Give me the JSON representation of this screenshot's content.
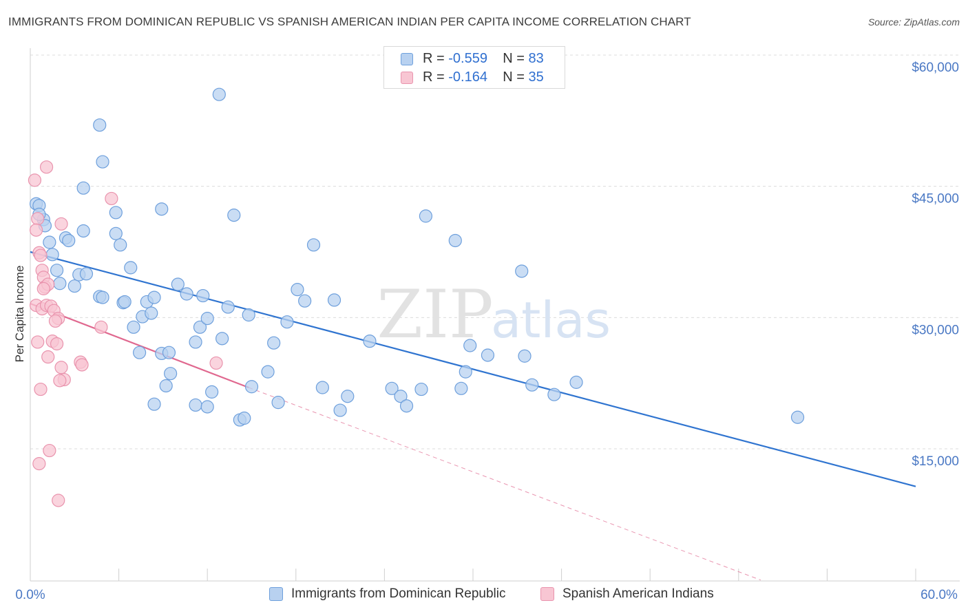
{
  "header": {
    "title": "IMMIGRANTS FROM DOMINICAN REPUBLIC VS SPANISH AMERICAN INDIAN PER CAPITA INCOME CORRELATION CHART",
    "source": "Source: ZipAtlas.com"
  },
  "watermark": {
    "zip": "ZIP",
    "atlas": "atlas"
  },
  "legend_top": {
    "rows": [
      {
        "r_label": "R = ",
        "r_value": "-0.559",
        "n_label": "N = ",
        "n_value": "83"
      },
      {
        "r_label": "R = ",
        "r_value": "-0.164",
        "n_label": "N = ",
        "n_value": "35"
      }
    ]
  },
  "chart_data": {
    "type": "scatter",
    "ylabel": "Per Capita Income",
    "x_tick_labels": {
      "min": "0.0%",
      "max": "60.0%"
    },
    "y_tick_labels": [
      "$15,000",
      "$30,000",
      "$45,000",
      "$60,000"
    ],
    "y_tick_values": [
      15000,
      30000,
      45000,
      60000
    ],
    "xlim": [
      0,
      60
    ],
    "ylim": [
      0,
      62000
    ],
    "grid": "horizontal-dashed",
    "legend_placement": "bottom",
    "colors": {
      "blue_fill": "#b8d1f0",
      "blue_stroke": "#6d9fdc",
      "blue_line": "#2f74d0",
      "pink_fill": "#f8c6d3",
      "pink_stroke": "#e993ad",
      "pink_line": "#e0688f"
    },
    "series": [
      {
        "name": "Immigrants from Dominican Republic",
        "color": "#6d9fdc",
        "trend": {
          "x": [
            0.0,
            60.0
          ],
          "y": [
            37500,
            10700
          ]
        },
        "points": [
          [
            0.4,
            43000
          ],
          [
            0.6,
            42800
          ],
          [
            0.9,
            41200
          ],
          [
            1.0,
            40500
          ],
          [
            1.3,
            38600
          ],
          [
            1.5,
            37200
          ],
          [
            1.8,
            35400
          ],
          [
            2.0,
            33900
          ],
          [
            2.4,
            39100
          ],
          [
            2.6,
            38800
          ],
          [
            3.0,
            33600
          ],
          [
            3.3,
            34900
          ],
          [
            3.6,
            39900
          ],
          [
            3.8,
            35000
          ],
          [
            4.7,
            32400
          ],
          [
            4.9,
            32300
          ],
          [
            5.8,
            39600
          ],
          [
            6.1,
            38300
          ],
          [
            6.3,
            31700
          ],
          [
            6.4,
            31800
          ],
          [
            6.8,
            35700
          ],
          [
            7.0,
            28900
          ],
          [
            7.4,
            26000
          ],
          [
            7.6,
            30100
          ],
          [
            7.9,
            31800
          ],
          [
            8.2,
            30500
          ],
          [
            8.4,
            32300
          ],
          [
            8.9,
            25900
          ],
          [
            9.2,
            22200
          ],
          [
            9.5,
            23600
          ],
          [
            10.0,
            33800
          ],
          [
            10.6,
            32700
          ],
          [
            11.2,
            27200
          ],
          [
            11.5,
            28900
          ],
          [
            11.7,
            32500
          ],
          [
            12.0,
            29900
          ],
          [
            12.3,
            21500
          ],
          [
            13.0,
            27600
          ],
          [
            13.4,
            31200
          ],
          [
            14.8,
            30300
          ],
          [
            14.2,
            18300
          ],
          [
            14.5,
            18500
          ],
          [
            15.0,
            22100
          ],
          [
            16.1,
            23800
          ],
          [
            16.5,
            27100
          ],
          [
            16.8,
            20300
          ],
          [
            17.4,
            29500
          ],
          [
            18.1,
            33200
          ],
          [
            18.6,
            31900
          ],
          [
            19.2,
            38300
          ],
          [
            19.8,
            22000
          ],
          [
            20.6,
            32000
          ],
          [
            21.0,
            19400
          ],
          [
            21.5,
            21000
          ],
          [
            23.0,
            27300
          ],
          [
            24.5,
            21900
          ],
          [
            25.1,
            21000
          ],
          [
            25.5,
            19900
          ],
          [
            26.5,
            21800
          ],
          [
            26.8,
            41600
          ],
          [
            28.8,
            38800
          ],
          [
            29.2,
            21900
          ],
          [
            29.5,
            23800
          ],
          [
            29.8,
            26800
          ],
          [
            31.0,
            25700
          ],
          [
            33.5,
            25600
          ],
          [
            33.3,
            35300
          ],
          [
            34.0,
            22300
          ],
          [
            35.5,
            21200
          ],
          [
            37.0,
            22600
          ],
          [
            52.0,
            18600
          ],
          [
            3.6,
            44800
          ],
          [
            4.7,
            52000
          ],
          [
            4.9,
            47800
          ],
          [
            12.8,
            55500
          ],
          [
            5.8,
            42000
          ],
          [
            8.9,
            42400
          ],
          [
            13.8,
            41700
          ],
          [
            0.6,
            41800
          ],
          [
            9.4,
            26000
          ],
          [
            11.2,
            20000
          ],
          [
            12.0,
            19800
          ],
          [
            8.4,
            20100
          ]
        ]
      },
      {
        "name": "Spanish American Indians",
        "color": "#e993ad",
        "trend": {
          "x": [
            0.0,
            14.8
          ],
          "y": [
            31600,
            22000
          ]
        },
        "trend_extension": {
          "x": [
            14.8,
            49.5
          ],
          "y": [
            22000,
            0
          ]
        },
        "points": [
          [
            0.3,
            45700
          ],
          [
            0.5,
            41300
          ],
          [
            0.4,
            40000
          ],
          [
            0.6,
            37400
          ],
          [
            0.7,
            37100
          ],
          [
            0.8,
            35400
          ],
          [
            0.9,
            34600
          ],
          [
            1.0,
            33500
          ],
          [
            1.2,
            33800
          ],
          [
            0.4,
            31400
          ],
          [
            0.8,
            31000
          ],
          [
            1.1,
            31400
          ],
          [
            1.4,
            31300
          ],
          [
            1.6,
            30800
          ],
          [
            1.9,
            29900
          ],
          [
            1.7,
            29600
          ],
          [
            0.5,
            27200
          ],
          [
            1.5,
            27300
          ],
          [
            1.8,
            27000
          ],
          [
            1.2,
            25500
          ],
          [
            2.1,
            24300
          ],
          [
            2.3,
            22900
          ],
          [
            2.0,
            22800
          ],
          [
            0.7,
            21800
          ],
          [
            1.1,
            47200
          ],
          [
            5.5,
            43600
          ],
          [
            2.1,
            40700
          ],
          [
            3.4,
            24900
          ],
          [
            3.5,
            24600
          ],
          [
            4.8,
            28900
          ],
          [
            12.6,
            24800
          ],
          [
            1.3,
            14800
          ],
          [
            0.6,
            13300
          ],
          [
            1.9,
            9100
          ],
          [
            0.9,
            33300
          ]
        ]
      }
    ]
  }
}
